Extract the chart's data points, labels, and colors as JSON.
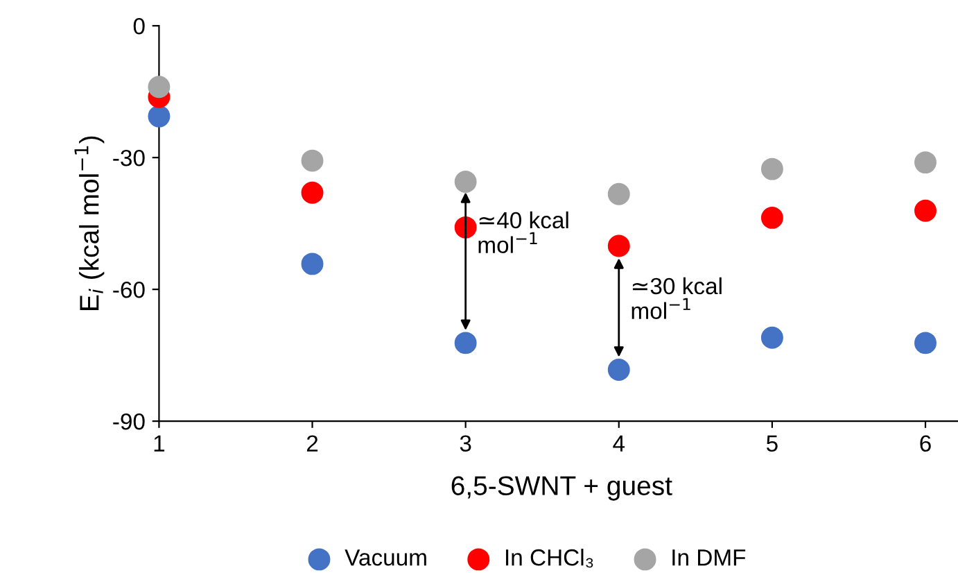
{
  "chart_data": {
    "type": "scatter",
    "xlabel": "6,5-SWNT + guest",
    "ylabel": "E$_{i}$ (kcal mol$^{−1}$)",
    "x": [
      1,
      2,
      3,
      4,
      5,
      6
    ],
    "series": [
      {
        "name": "Vacuum",
        "color": "#4472c4",
        "values": [
          -20.6,
          -54.2,
          -72.2,
          -78.3,
          -71.0,
          -72.2
        ]
      },
      {
        "name": "In CHCl₃",
        "color": "#ff0000",
        "values": [
          -16.2,
          -38.0,
          -45.9,
          -50.1,
          -43.7,
          -42.1
        ]
      },
      {
        "name": "In DMF",
        "color": "#a5a5a5",
        "values": [
          -13.9,
          -30.7,
          -35.5,
          -38.3,
          -32.6,
          -31.1
        ]
      }
    ],
    "annotations": [
      {
        "text": "≃40 kcal\nmol$^{−1}$",
        "x": 3,
        "y": -37
      },
      {
        "text": "≃30 kcal\nmol$^{−1}$",
        "x": 4,
        "y": -52
      }
    ],
    "xlim": [
      1,
      6.25
    ],
    "xticks": [
      1,
      2,
      3,
      4,
      5,
      6
    ],
    "ylim": [
      -90,
      0
    ],
    "yticks": [
      -90,
      -60,
      -30,
      0
    ],
    "marker": "circle",
    "grid": false,
    "legend": "bottom"
  }
}
